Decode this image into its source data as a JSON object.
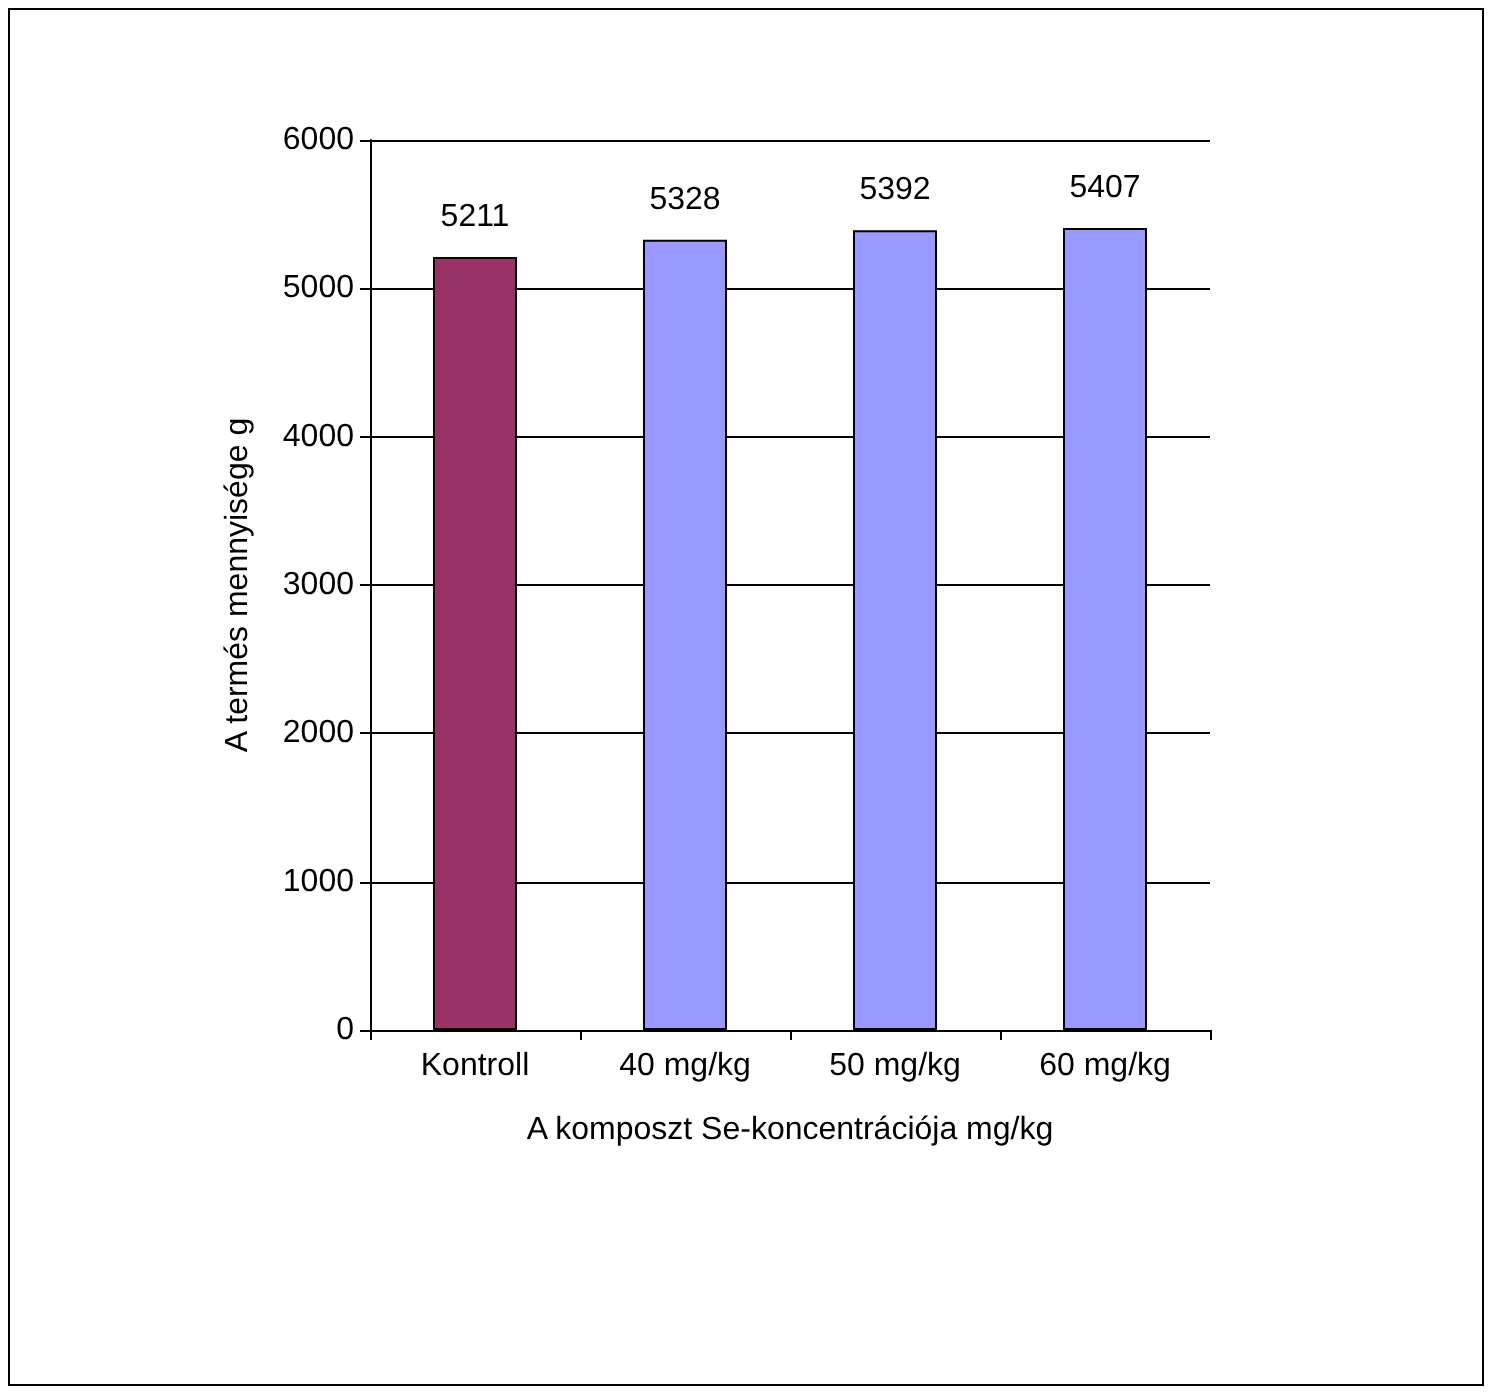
{
  "chart_data": {
    "type": "bar",
    "categories": [
      "Kontroll",
      "40 mg/kg",
      "50 mg/kg",
      "60 mg/kg"
    ],
    "values": [
      5211,
      5328,
      5392,
      5407
    ],
    "colors": [
      "#993366",
      "#9999ff",
      "#9999ff",
      "#9999ff"
    ],
    "xlabel": "A komposzt Se-koncentrációja mg/kg",
    "ylabel": "A termés mennyisége g",
    "ylim": [
      0,
      6000
    ],
    "yticks": [
      0,
      1000,
      2000,
      3000,
      4000,
      5000,
      6000
    ],
    "grid": "y",
    "data_labels": true
  }
}
